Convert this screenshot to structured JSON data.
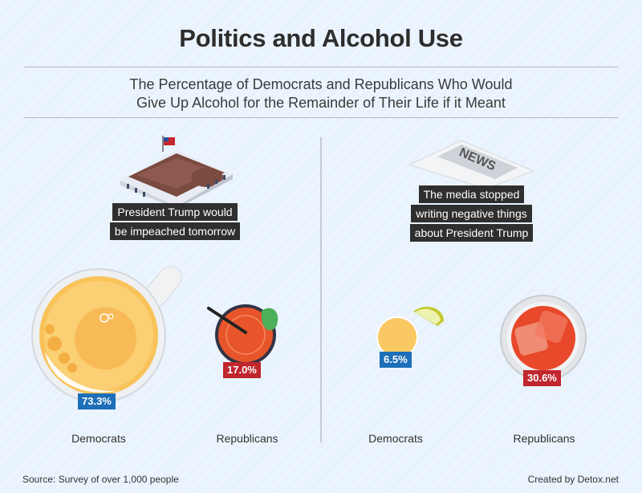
{
  "title": "Politics and Alcohol Use",
  "subtitle_line1": "The Percentage of Democrats and Republicans Who Would",
  "subtitle_line2": "Give Up Alcohol for the Remainder of Their Life if it Meant",
  "panels": [
    {
      "icon": "white-house-icon",
      "caption": [
        "President Trump would",
        "be impeached tomorrow"
      ],
      "democrats": {
        "label": "Democrats",
        "value_text": "73.3%",
        "value": 73.3,
        "icon": "beer-mug-icon"
      },
      "republicans": {
        "label": "Republicans",
        "value_text": "17.0%",
        "value": 17.0,
        "icon": "cocktail-icon"
      }
    },
    {
      "icon": "newspaper-icon",
      "caption": [
        "The media stopped",
        "writing negative things",
        "about President Trump"
      ],
      "democrats": {
        "label": "Democrats",
        "value_text": "6.5%",
        "value": 6.5,
        "icon": "tequila-shot-icon"
      },
      "republicans": {
        "label": "Republicans",
        "value_text": "30.6%",
        "value": 30.6,
        "icon": "glass-with-ice-icon"
      }
    }
  ],
  "newspaper_text": "NEWS",
  "footer": {
    "source": "Source: Survey of over 1,000 people",
    "credit": "Created by Detox.net"
  },
  "colors": {
    "democrat": "#1c6fb8",
    "republican": "#c0262e",
    "background": "#e9f3fd",
    "caption_bg": "#2f2f2f"
  },
  "chart_data": {
    "type": "bar",
    "title": "Politics and Alcohol Use",
    "subtitle": "The Percentage of Democrats and Republicans Who Would Give Up Alcohol for the Remainder of Their Life if it Meant",
    "categories": [
      "President Trump would be impeached tomorrow",
      "The media stopped writing negative things about President Trump"
    ],
    "series": [
      {
        "name": "Democrats",
        "values": [
          73.3,
          6.5
        ]
      },
      {
        "name": "Republicans",
        "values": [
          17.0,
          30.6
        ]
      }
    ],
    "unit": "%",
    "source": "Source: Survey of over 1,000 people"
  }
}
